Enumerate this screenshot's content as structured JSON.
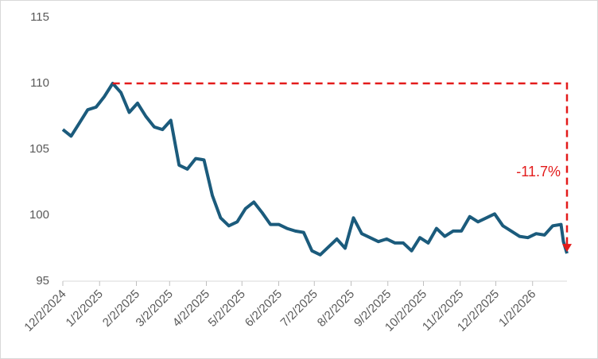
{
  "chart_data": {
    "type": "line",
    "x": [
      "2024-12-02",
      "2024-12-09",
      "2024-12-16",
      "2024-12-23",
      "2024-12-30",
      "2025-01-06",
      "2025-01-13",
      "2025-01-20",
      "2025-01-27",
      "2025-02-03",
      "2025-02-10",
      "2025-02-17",
      "2025-02-24",
      "2025-03-03",
      "2025-03-10",
      "2025-03-17",
      "2025-03-24",
      "2025-03-31",
      "2025-04-07",
      "2025-04-14",
      "2025-04-21",
      "2025-04-28",
      "2025-05-05",
      "2025-05-12",
      "2025-05-19",
      "2025-05-26",
      "2025-06-02",
      "2025-06-09",
      "2025-06-16",
      "2025-06-23",
      "2025-06-30",
      "2025-07-07",
      "2025-07-14",
      "2025-07-21",
      "2025-07-28",
      "2025-08-04",
      "2025-08-11",
      "2025-08-18",
      "2025-08-25",
      "2025-09-01",
      "2025-09-08",
      "2025-09-15",
      "2025-09-22",
      "2025-09-29",
      "2025-10-06",
      "2025-10-13",
      "2025-10-20",
      "2025-10-27",
      "2025-11-03",
      "2025-11-10",
      "2025-11-17",
      "2025-11-24",
      "2025-12-01",
      "2025-12-08",
      "2025-12-15",
      "2025-12-22",
      "2025-12-29",
      "2026-01-05",
      "2026-01-12",
      "2026-01-19",
      "2026-01-26",
      "2026-01-28",
      "2026-01-31"
    ],
    "values": [
      106.5,
      106.0,
      107.0,
      108.0,
      108.2,
      109.0,
      110.0,
      109.3,
      107.8,
      108.5,
      107.5,
      106.7,
      106.5,
      107.2,
      103.8,
      103.5,
      104.3,
      104.2,
      101.5,
      99.8,
      99.2,
      99.5,
      100.5,
      101.0,
      100.2,
      99.3,
      99.3,
      99.0,
      98.8,
      98.7,
      97.3,
      97.0,
      97.6,
      98.2,
      97.5,
      99.8,
      98.6,
      98.3,
      98.0,
      98.2,
      97.9,
      97.9,
      97.3,
      98.3,
      97.9,
      99.0,
      98.4,
      98.8,
      98.8,
      99.9,
      99.5,
      99.8,
      100.1,
      99.2,
      98.8,
      98.4,
      98.3,
      98.6,
      98.5,
      99.2,
      99.3,
      98.0,
      97.1
    ],
    "color": "#1b5b7c",
    "xlim": [
      "2024-12-02",
      "2026-01-31"
    ],
    "xticks": [
      {
        "value": "2024-12-02",
        "label": "12/2/2024"
      },
      {
        "value": "2025-01-02",
        "label": "1/2/2025"
      },
      {
        "value": "2025-02-02",
        "label": "2/2/2025"
      },
      {
        "value": "2025-03-02",
        "label": "3/2/2025"
      },
      {
        "value": "2025-04-02",
        "label": "4/2/2025"
      },
      {
        "value": "2025-05-02",
        "label": "5/2/2025"
      },
      {
        "value": "2025-06-02",
        "label": "6/2/2025"
      },
      {
        "value": "2025-07-02",
        "label": "7/2/2025"
      },
      {
        "value": "2025-08-02",
        "label": "8/2/2025"
      },
      {
        "value": "2025-09-02",
        "label": "9/2/2025"
      },
      {
        "value": "2025-10-02",
        "label": "10/2/2025"
      },
      {
        "value": "2025-11-02",
        "label": "11/2/2025"
      },
      {
        "value": "2025-12-02",
        "label": "12/2/2025"
      },
      {
        "value": "2026-01-02",
        "label": "1/2/2026"
      }
    ],
    "ylim": [
      95,
      115
    ],
    "yticks": [
      95,
      100,
      105,
      110,
      115
    ],
    "annotation": "-11.7%",
    "annotation_color": "#e31b1b"
  }
}
